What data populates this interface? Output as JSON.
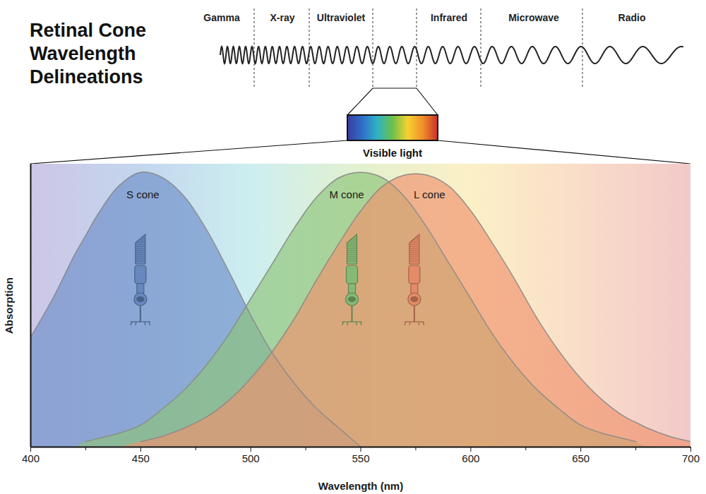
{
  "chart_data": {
    "type": "area",
    "title": "Retinal Cone Wavelength Delineations",
    "x_label": "Wavelength (nm)",
    "y_label": "Absorption",
    "annotations": {
      "spectrum_bands": [
        "Gamma",
        "X-ray",
        "Ultraviolet",
        "Infrared",
        "Microwave",
        "Radio"
      ],
      "visible_label": "Visible light"
    },
    "x": [
      400,
      410,
      420,
      425,
      430,
      440,
      450,
      460,
      470,
      480,
      490,
      500,
      510,
      520,
      530,
      540,
      550,
      560,
      570,
      580,
      590,
      600,
      610,
      620,
      630,
      640,
      650,
      660,
      670,
      675,
      680,
      690,
      700
    ],
    "series": [
      {
        "name": "S cone",
        "color": "#6d8fc8",
        "values": [
          0.4,
          0.54,
          0.7,
          0.77,
          0.84,
          0.95,
          1.0,
          0.98,
          0.91,
          0.79,
          0.64,
          0.48,
          0.34,
          0.23,
          0.14,
          0.07,
          0,
          null,
          null,
          null,
          null,
          null,
          null,
          null,
          null,
          null,
          null,
          null,
          null,
          null,
          null,
          null,
          null
        ]
      },
      {
        "name": "M cone",
        "color": "#8dc47a",
        "values": [
          null,
          null,
          null,
          0.02,
          0.03,
          0.05,
          0.08,
          0.14,
          0.21,
          0.3,
          0.41,
          0.54,
          0.67,
          0.8,
          0.91,
          0.98,
          1.0,
          0.98,
          0.91,
          0.8,
          0.67,
          0.54,
          0.41,
          0.3,
          0.21,
          0.14,
          0.08,
          0.05,
          0.03,
          0.02,
          null,
          null,
          null
        ]
      },
      {
        "name": "L cone",
        "color": "#f0926d",
        "values": [
          null,
          null,
          null,
          null,
          null,
          null,
          0.02,
          0.04,
          0.07,
          0.11,
          0.17,
          0.25,
          0.35,
          0.47,
          0.61,
          0.74,
          0.86,
          0.95,
          0.99,
          0.99,
          0.95,
          0.86,
          0.74,
          0.61,
          0.47,
          0.35,
          0.25,
          0.17,
          0.11,
          0.09,
          0.07,
          0.04,
          0.02
        ]
      }
    ],
    "xlim": [
      400,
      700
    ],
    "xticks": [
      400,
      450,
      500,
      550,
      600,
      650,
      700
    ],
    "ylim": [
      0,
      1.03
    ],
    "yticks": [],
    "tick_labels": "x",
    "grid": false
  }
}
